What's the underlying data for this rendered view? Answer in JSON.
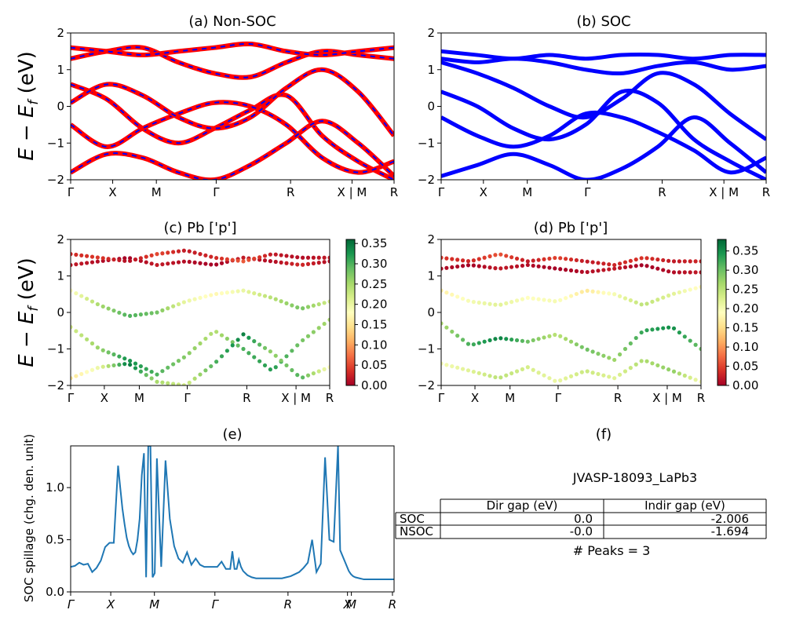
{
  "chart_data": [
    {
      "panel": "a",
      "type": "line",
      "title": "(a) Non-SOC",
      "ylabel": "E − E_f (eV)",
      "ylim": [
        -2,
        2
      ],
      "yticks": [
        2,
        1,
        0,
        -1,
        -2
      ],
      "kpath": [
        "Γ",
        "X",
        "M",
        "Γ",
        "R",
        "X | M",
        "R"
      ],
      "colors": [
        "#ff0000",
        "#0000ff"
      ],
      "series": [
        {
          "values": [
            0.6,
            0.2,
            -0.6,
            -1.0,
            -0.6,
            -0.1,
            0.3,
            -0.8,
            -1.5,
            -2.0
          ]
        },
        {
          "values": [
            -0.5,
            -1.1,
            -0.6,
            -0.2,
            0.1,
            0.0,
            -0.5,
            -1.4,
            -1.8,
            -1.5
          ]
        },
        {
          "values": [
            0.1,
            0.6,
            0.3,
            -0.3,
            -0.6,
            -0.3,
            0.5,
            1.0,
            0.4,
            -0.8
          ]
        },
        {
          "values": [
            1.3,
            1.5,
            1.6,
            1.2,
            0.9,
            0.8,
            1.2,
            1.5,
            1.4,
            1.3
          ]
        },
        {
          "values": [
            1.6,
            1.5,
            1.4,
            1.5,
            1.6,
            1.7,
            1.5,
            1.4,
            1.5,
            1.6
          ]
        },
        {
          "values": [
            -1.8,
            -1.3,
            -1.4,
            -1.8,
            -2.0,
            -1.6,
            -1.0,
            -0.4,
            -1.0,
            -1.9
          ]
        }
      ]
    },
    {
      "panel": "b",
      "type": "line",
      "title": "(b) SOC",
      "ylim": [
        -2,
        2
      ],
      "yticks": [
        2,
        1,
        0,
        -1,
        -2
      ],
      "kpath": [
        "Γ",
        "X",
        "M",
        "Γ",
        "R",
        "X | M",
        "R"
      ],
      "colors": [
        "#0000ff"
      ],
      "series": [
        {
          "values": [
            0.4,
            0.0,
            -0.6,
            -0.9,
            -0.5,
            0.4,
            0.1,
            -0.9,
            -1.5,
            -2.0
          ]
        },
        {
          "values": [
            -0.3,
            -0.8,
            -1.1,
            -0.8,
            -0.2,
            -0.3,
            -0.7,
            -1.2,
            -1.8,
            -1.4
          ]
        },
        {
          "values": [
            1.2,
            0.9,
            0.5,
            0.0,
            -0.3,
            0.2,
            0.9,
            0.6,
            -0.2,
            -0.9
          ]
        },
        {
          "values": [
            1.3,
            1.2,
            1.3,
            1.2,
            1.0,
            0.9,
            1.1,
            1.2,
            1.0,
            1.1
          ]
        },
        {
          "values": [
            1.5,
            1.4,
            1.3,
            1.4,
            1.3,
            1.4,
            1.4,
            1.3,
            1.4,
            1.4
          ]
        },
        {
          "values": [
            -1.9,
            -1.6,
            -1.3,
            -1.6,
            -2.0,
            -1.7,
            -1.1,
            -0.3,
            -1.0,
            -1.8
          ]
        }
      ]
    },
    {
      "panel": "c",
      "type": "scatter",
      "title": "(c)  Pb ['p']",
      "ylabel": "E − E_f (eV)",
      "ylim": [
        -2,
        2
      ],
      "yticks": [
        2,
        1,
        0,
        -1,
        -2
      ],
      "kpath": [
        "Γ",
        "X",
        "M",
        "Γ",
        "R",
        "X | M",
        "R"
      ],
      "colorbar": {
        "ticks": [
          "0.35",
          "0.30",
          "0.25",
          "0.20",
          "0.15",
          "0.10",
          "0.05",
          "0.00"
        ],
        "max": 0.36
      },
      "series": [
        {
          "values": [
            1.3,
            1.4,
            1.5,
            1.3,
            1.4,
            1.3,
            1.5,
            1.4,
            1.3,
            1.4
          ],
          "weights": [
            0.02,
            0.01,
            0.0,
            0.02,
            0.01,
            0.0,
            0.02,
            0.01,
            0.03,
            0.01
          ]
        },
        {
          "values": [
            1.6,
            1.5,
            1.4,
            1.6,
            1.7,
            1.5,
            1.4,
            1.6,
            1.5,
            1.5
          ],
          "weights": [
            0.03,
            0.04,
            0.01,
            0.05,
            0.02,
            0.03,
            0.06,
            0.02,
            0.01,
            0.02
          ]
        },
        {
          "values": [
            0.6,
            0.2,
            -0.1,
            0.0,
            0.3,
            0.5,
            0.6,
            0.4,
            0.1,
            0.3
          ],
          "weights": [
            0.18,
            0.25,
            0.3,
            0.28,
            0.2,
            0.17,
            0.2,
            0.24,
            0.28,
            0.22
          ]
        },
        {
          "values": [
            -0.4,
            -1.0,
            -1.3,
            -1.7,
            -1.2,
            -0.5,
            -1.0,
            -1.6,
            -0.8,
            -0.2
          ],
          "weights": [
            0.22,
            0.26,
            0.33,
            0.3,
            0.27,
            0.24,
            0.3,
            0.32,
            0.28,
            0.25
          ]
        },
        {
          "values": [
            -1.8,
            -1.5,
            -1.4,
            -1.9,
            -2.0,
            -1.4,
            -0.6,
            -1.1,
            -1.8,
            -1.5
          ],
          "weights": [
            0.15,
            0.2,
            0.35,
            0.25,
            0.22,
            0.3,
            0.34,
            0.26,
            0.3,
            0.18
          ]
        }
      ]
    },
    {
      "panel": "d",
      "type": "scatter",
      "title": "(d) Pb ['p']",
      "ylim": [
        -2,
        2
      ],
      "yticks": [
        2,
        1,
        0,
        -1,
        -2
      ],
      "kpath": [
        "Γ",
        "X",
        "M",
        "Γ",
        "R",
        "X | M",
        "R"
      ],
      "colorbar": {
        "ticks": [
          "0.35",
          "0.30",
          "0.25",
          "0.20",
          "0.15",
          "0.10",
          "0.05",
          "0.00"
        ],
        "max": 0.38
      },
      "series": [
        {
          "values": [
            1.2,
            1.3,
            1.2,
            1.3,
            1.2,
            1.1,
            1.2,
            1.3,
            1.1,
            1.1
          ],
          "weights": [
            0.01,
            0.0,
            0.02,
            0.01,
            0.0,
            0.01,
            0.02,
            0.0,
            0.01,
            0.02
          ]
        },
        {
          "values": [
            1.5,
            1.4,
            1.6,
            1.4,
            1.5,
            1.4,
            1.3,
            1.5,
            1.4,
            1.4
          ],
          "weights": [
            0.04,
            0.03,
            0.06,
            0.02,
            0.05,
            0.02,
            0.03,
            0.04,
            0.02,
            0.03
          ]
        },
        {
          "values": [
            0.6,
            0.3,
            0.2,
            0.4,
            0.3,
            0.6,
            0.5,
            0.2,
            0.5,
            0.7
          ],
          "weights": [
            0.17,
            0.2,
            0.22,
            0.19,
            0.2,
            0.16,
            0.2,
            0.25,
            0.22,
            0.18
          ]
        },
        {
          "values": [
            -0.3,
            -0.9,
            -0.7,
            -0.8,
            -0.6,
            -1.0,
            -1.3,
            -0.5,
            -0.4,
            -1.0
          ],
          "weights": [
            0.26,
            0.32,
            0.36,
            0.3,
            0.25,
            0.3,
            0.27,
            0.33,
            0.35,
            0.3
          ]
        },
        {
          "values": [
            -1.4,
            -1.6,
            -1.8,
            -1.5,
            -1.9,
            -1.6,
            -1.8,
            -1.3,
            -1.6,
            -1.9
          ],
          "weights": [
            0.2,
            0.22,
            0.25,
            0.23,
            0.21,
            0.24,
            0.22,
            0.26,
            0.28,
            0.2
          ]
        }
      ]
    },
    {
      "panel": "e",
      "type": "line",
      "title": "(e)",
      "ylabel": "SOC spillage (chg. den. unit)",
      "ylim": [
        0,
        1.4
      ],
      "yticks": [
        "0.0",
        "0.5",
        "1.0"
      ],
      "kpath": [
        "Γ",
        "X",
        "M",
        "Γ",
        "R",
        "X",
        "M",
        "R"
      ],
      "color": "#1f77b4",
      "series": [
        {
          "x": [
            0,
            2,
            4,
            6,
            8,
            10,
            12,
            14,
            16,
            18,
            20,
            22,
            23,
            24,
            25,
            26,
            27,
            28,
            29,
            30,
            31,
            32,
            33,
            34,
            35,
            36,
            37,
            38,
            39,
            40,
            42,
            44,
            46,
            48,
            50,
            52,
            54,
            56,
            58,
            60,
            62,
            64,
            66,
            68,
            70,
            72,
            74,
            75,
            76,
            77,
            78,
            79,
            80,
            82,
            84,
            86,
            88,
            90,
            92,
            94,
            96,
            98,
            100,
            102,
            104,
            106,
            108,
            110,
            112,
            114,
            116,
            118,
            120,
            122,
            124,
            125,
            126,
            127,
            128,
            129,
            130,
            131,
            132,
            134,
            136,
            138,
            140,
            142,
            144,
            146,
            148,
            150
          ],
          "values": [
            0.24,
            0.25,
            0.28,
            0.26,
            0.27,
            0.19,
            0.23,
            0.3,
            0.43,
            0.47,
            0.47,
            1.21,
            1.0,
            0.8,
            0.65,
            0.52,
            0.44,
            0.39,
            0.36,
            0.38,
            0.5,
            0.7,
            1.12,
            1.33,
            0.14,
            1.4,
            1.4,
            0.14,
            0.18,
            1.28,
            0.24,
            1.26,
            0.7,
            0.44,
            0.32,
            0.28,
            0.38,
            0.26,
            0.32,
            0.26,
            0.24,
            0.24,
            0.24,
            0.24,
            0.29,
            0.22,
            0.22,
            0.39,
            0.22,
            0.22,
            0.31,
            0.24,
            0.2,
            0.16,
            0.14,
            0.13,
            0.13,
            0.13,
            0.13,
            0.13,
            0.13,
            0.13,
            0.14,
            0.15,
            0.17,
            0.19,
            0.23,
            0.28,
            0.5,
            0.19,
            0.27,
            1.29,
            0.5,
            0.48,
            1.4,
            0.4,
            0.35,
            0.3,
            0.25,
            0.2,
            0.17,
            0.15,
            0.14,
            0.13,
            0.12,
            0.12,
            0.12,
            0.12,
            0.12,
            0.12,
            0.12,
            0.12
          ]
        }
      ]
    }
  ],
  "panel_f": {
    "title": "(f)",
    "jid": "JVASP-18093_LaPb3",
    "table": {
      "headers": [
        "",
        "Dir gap (eV)",
        "Indir gap (eV)"
      ],
      "rows": [
        [
          "SOC",
          "0.0",
          "-2.006"
        ],
        [
          "NSOC",
          "-0.0",
          "-1.694"
        ]
      ]
    },
    "peaks": "# Peaks = 3"
  },
  "colors": {
    "nonsoc_red": "#ff0000",
    "nonsoc_blue": "#0000ff",
    "soc_blue": "#0000ff",
    "spillage_line": "#1f77b4",
    "colormap": "RdYlGn"
  }
}
